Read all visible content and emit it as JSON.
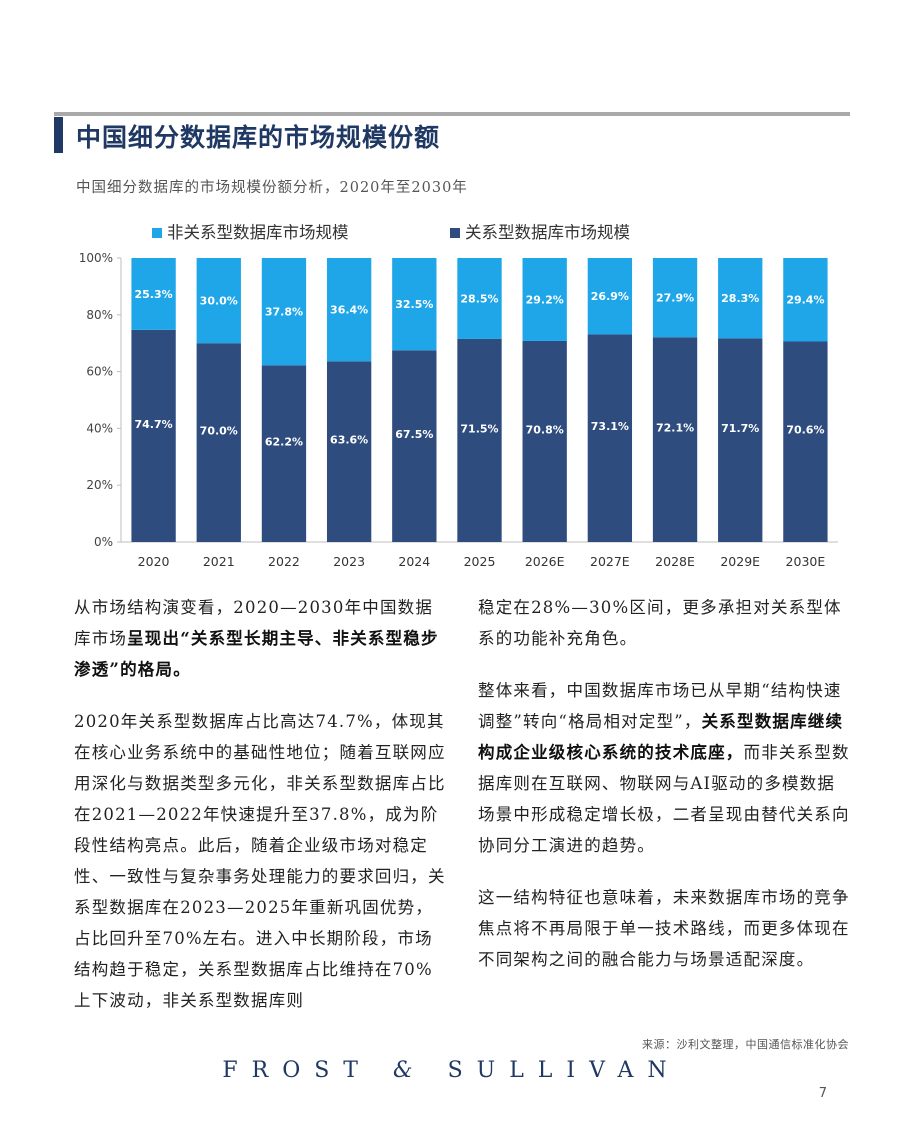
{
  "header": {
    "title": "中国细分数据库的市场规模份额",
    "subtitle": "中国细分数据库的市场规模份额分析，2020年至2030年"
  },
  "chart_data": {
    "type": "bar",
    "stacked": true,
    "categories": [
      "2020",
      "2021",
      "2022",
      "2023",
      "2024",
      "2025",
      "2026E",
      "2027E",
      "2028E",
      "2029E",
      "2030E"
    ],
    "series": [
      {
        "name": "关系型数据库市场规模",
        "color": "#2e4c7e",
        "values": [
          74.7,
          70.0,
          62.2,
          63.6,
          67.5,
          71.5,
          70.8,
          73.1,
          72.1,
          71.7,
          70.6
        ],
        "labels": [
          "74.7%",
          "70.0%",
          "62.2%",
          "63.6%",
          "67.5%",
          "71.5%",
          "70.8%",
          "73.1%",
          "72.1%",
          "71.7%",
          "70.6%"
        ]
      },
      {
        "name": "非关系型数据库市场规模",
        "color": "#1ea6e8",
        "values": [
          25.3,
          30.0,
          37.8,
          36.4,
          32.5,
          28.5,
          29.2,
          26.9,
          27.9,
          28.3,
          29.4
        ],
        "labels": [
          "25.3%",
          "30.0%",
          "37.8%",
          "36.4%",
          "32.5%",
          "28.5%",
          "29.2%",
          "26.9%",
          "27.9%",
          "28.3%",
          "29.4%"
        ]
      }
    ],
    "legend": [
      {
        "name": "非关系型数据库市场规模",
        "color": "#1ea6e8"
      },
      {
        "name": "关系型数据库市场规模",
        "color": "#2e4c7e"
      }
    ],
    "legend_position": "top-left",
    "ylim": [
      0,
      100
    ],
    "yticks": [
      0,
      20,
      40,
      60,
      80,
      100
    ],
    "ytick_labels": [
      "0%",
      "20%",
      "40%",
      "60%",
      "80%",
      "100%"
    ],
    "grid": false
  },
  "body": {
    "left": {
      "p1_a": "从市场结构演变看，2020—2030年中国数据库市场",
      "p1_b": "呈现出“关系型长期主导、非关系型稳步渗透”",
      "p1_c": "的格局。",
      "p2": "2020年关系型数据库占比高达74.7%，体现其在核心业务系统中的基础性地位；随着互联网应用深化与数据类型多元化，非关系型数据库占比在2021—2022年快速提升至37.8%，成为阶段性结构亮点。此后，随着企业级市场对稳定性、一致性与复杂事务处理能力的要求回归，关系型数据库在2023—2025年重新巩固优势，占比回升至70%左右。进入中长期阶段，市场结构趋于稳定，关系型数据库占比维持在70%上下波动，非关系型数据库则"
    },
    "right": {
      "p1": "稳定在28%—30%区间，更多承担对关系型体系的功能补充角色。",
      "p2_a": "整体来看，中国数据库市场已从早期“结构快速调整”转向“格局相对定型”，",
      "p2_b": "关系型数据库继续构成企业级核心系统的技术底座，",
      "p2_c": "而非关系型数据库则在互联网、物联网与AI驱动的多模数据场景中形成稳定增长极，二者呈现由替代关系向协同分工演进的趋势。",
      "p3": "这一结构特征也意味着，未来数据库市场的竞争焦点将不再局限于单一技术路线，而更多体现在不同架构之间的融合能力与场景适配深度。"
    }
  },
  "footer": {
    "source": "来源：沙利文整理，中国通信标准化协会",
    "logo_left": "FROST",
    "logo_amp": "&",
    "logo_right": "SULLIVAN",
    "page_number": "7"
  }
}
